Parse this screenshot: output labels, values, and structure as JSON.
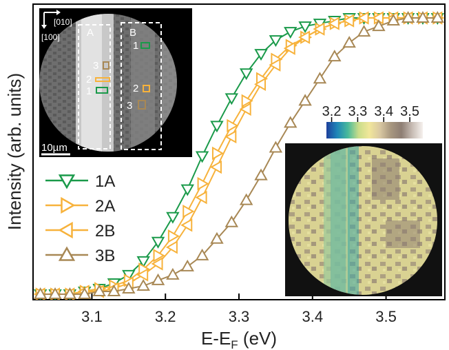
{
  "chart_data": {
    "type": "line",
    "title": "",
    "xlabel": "E-E",
    "xlabel_sub": "F",
    "xlabel_unit": " (eV)",
    "ylabel": "Intensity (arb. units)",
    "xlim": [
      3.02,
      3.58
    ],
    "ylim": [
      -0.02,
      1.05
    ],
    "xticks": [
      "3.1",
      "3.2",
      "3.3",
      "3.4",
      "3.5"
    ],
    "legend_position": "lower-left",
    "grid": false,
    "series": [
      {
        "name": "1A",
        "color": "#1a9a4a",
        "marker": "triangle-down",
        "x": [
          3.03,
          3.05,
          3.07,
          3.09,
          3.11,
          3.13,
          3.15,
          3.17,
          3.19,
          3.21,
          3.23,
          3.25,
          3.27,
          3.29,
          3.31,
          3.33,
          3.35,
          3.37,
          3.39,
          3.41,
          3.43,
          3.45,
          3.47,
          3.49,
          3.51,
          3.53,
          3.55,
          3.57
        ],
        "y": [
          0.0,
          0.0,
          0.0,
          0.01,
          0.02,
          0.04,
          0.07,
          0.12,
          0.19,
          0.28,
          0.38,
          0.5,
          0.61,
          0.71,
          0.8,
          0.87,
          0.92,
          0.95,
          0.97,
          0.98,
          0.99,
          1.0,
          1.0,
          1.0,
          1.0,
          1.0,
          1.0,
          1.0
        ]
      },
      {
        "name": "2A",
        "color": "#f7b23b",
        "marker": "triangle-right",
        "x": [
          3.03,
          3.05,
          3.07,
          3.09,
          3.11,
          3.13,
          3.15,
          3.17,
          3.19,
          3.21,
          3.23,
          3.25,
          3.27,
          3.29,
          3.31,
          3.33,
          3.35,
          3.37,
          3.39,
          3.41,
          3.43,
          3.45,
          3.47,
          3.49,
          3.51,
          3.53,
          3.55,
          3.57
        ],
        "y": [
          0.0,
          0.0,
          0.0,
          0.01,
          0.02,
          0.03,
          0.05,
          0.09,
          0.14,
          0.21,
          0.3,
          0.4,
          0.51,
          0.61,
          0.7,
          0.78,
          0.85,
          0.9,
          0.93,
          0.96,
          0.98,
          0.99,
          1.0,
          1.0,
          1.0,
          1.0,
          1.0,
          1.0
        ]
      },
      {
        "name": "2B",
        "color": "#f7b23b",
        "marker": "triangle-left",
        "x": [
          3.03,
          3.05,
          3.07,
          3.09,
          3.11,
          3.13,
          3.15,
          3.17,
          3.19,
          3.21,
          3.23,
          3.25,
          3.27,
          3.29,
          3.31,
          3.33,
          3.35,
          3.37,
          3.39,
          3.41,
          3.43,
          3.45,
          3.47,
          3.49,
          3.51,
          3.53,
          3.55,
          3.57
        ],
        "y": [
          0.0,
          0.0,
          0.0,
          0.01,
          0.01,
          0.02,
          0.04,
          0.07,
          0.11,
          0.17,
          0.25,
          0.35,
          0.46,
          0.57,
          0.67,
          0.76,
          0.83,
          0.89,
          0.93,
          0.96,
          0.98,
          0.99,
          1.0,
          1.0,
          1.0,
          1.0,
          1.0,
          1.0
        ]
      },
      {
        "name": "3B",
        "color": "#a88855",
        "marker": "triangle-up",
        "x": [
          3.03,
          3.05,
          3.07,
          3.09,
          3.11,
          3.13,
          3.15,
          3.17,
          3.19,
          3.21,
          3.23,
          3.25,
          3.27,
          3.29,
          3.31,
          3.33,
          3.35,
          3.37,
          3.39,
          3.41,
          3.43,
          3.45,
          3.47,
          3.49,
          3.51,
          3.53,
          3.55,
          3.57
        ],
        "y": [
          0.0,
          0.0,
          0.0,
          0.0,
          0.01,
          0.01,
          0.02,
          0.03,
          0.05,
          0.07,
          0.1,
          0.14,
          0.2,
          0.26,
          0.34,
          0.43,
          0.53,
          0.62,
          0.7,
          0.78,
          0.86,
          0.91,
          0.95,
          0.97,
          0.99,
          1.0,
          1.0,
          1.0
        ]
      }
    ],
    "inset_left": {
      "direction_label_1": "[010]",
      "direction_label_2": "[100]",
      "region_a": "A",
      "region_b": "B",
      "markers": [
        "1",
        "2",
        "3",
        "1",
        "2",
        "3"
      ],
      "scale_bar": "10µm"
    },
    "inset_right": {
      "colorbar_ticks": [
        "3.2",
        "3.3",
        "3.4",
        "3.5"
      ],
      "colormap": [
        "#1d3f9c",
        "#1f86b8",
        "#49b99a",
        "#c9dd8a",
        "#f1e79a",
        "#d9c8a2",
        "#a8977f",
        "#8d7d73",
        "#c7bcb4",
        "#f6f1ee"
      ]
    }
  }
}
